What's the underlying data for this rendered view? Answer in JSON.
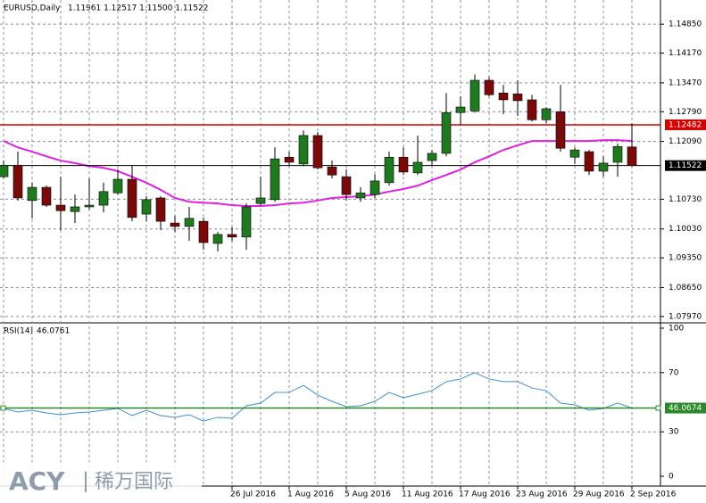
{
  "chart_data": [
    {
      "type": "candlestick",
      "title": "EURUSD,Daily",
      "ohlc_label": "1.11961 1.12517 1.11500 1.11522",
      "categories": [
        null,
        null,
        null,
        null,
        null,
        null,
        null,
        null,
        null,
        null,
        null,
        null,
        null,
        null,
        null,
        null,
        "26 Jul 2016",
        null,
        null,
        null,
        "1 Aug 2016",
        null,
        null,
        null,
        "5 Aug 2016",
        null,
        null,
        null,
        "11 Aug 2016",
        null,
        null,
        null,
        "17 Aug 2016",
        null,
        null,
        null,
        "23 Aug 2016",
        null,
        null,
        null,
        "29 Aug 2016",
        null,
        null,
        null,
        "2 Sep 2016"
      ],
      "open": [
        1.1126,
        1.1153,
        1.107,
        1.1101,
        1.1059,
        1.1044,
        1.1055,
        1.1059,
        1.1088,
        1.112,
        1.1038,
        1.1076,
        1.1017,
        1.1009,
        1.1021,
        1.0969,
        1.099,
        1.0984,
        1.1063,
        1.1072,
        1.1172,
        1.1156,
        1.1223,
        1.1149,
        1.1126,
        1.1076,
        1.1084,
        1.1112,
        1.1172,
        1.1135,
        1.1164,
        1.1181,
        1.1277,
        1.1281,
        1.1353,
        1.1323,
        1.1321,
        1.1307,
        1.126,
        1.1279,
        1.1172,
        1.1185,
        1.1139,
        1.116,
        1.11961
      ],
      "high": [
        1.1164,
        1.1185,
        1.1112,
        1.1105,
        1.1126,
        1.1084,
        1.1122,
        1.1112,
        1.1143,
        1.1153,
        1.108,
        1.108,
        1.1034,
        1.1055,
        1.103,
        1.0996,
        1.1007,
        1.1063,
        1.1126,
        1.1195,
        1.1185,
        1.1235,
        1.1231,
        1.1164,
        1.1143,
        1.1101,
        1.1132,
        1.1185,
        1.1195,
        1.1223,
        1.1189,
        1.1323,
        1.1315,
        1.1367,
        1.1361,
        1.1342,
        1.1353,
        1.1319,
        1.129,
        1.1342,
        1.1195,
        1.1189,
        1.1174,
        1.1204,
        1.12517
      ],
      "low": [
        1.1122,
        1.107,
        1.1028,
        1.1055,
        1.1,
        1.1017,
        1.1049,
        1.1042,
        1.1084,
        1.1021,
        1.1021,
        1.1,
        1.0996,
        1.0975,
        1.0954,
        1.095,
        1.0975,
        1.0954,
        1.1059,
        1.1067,
        1.1151,
        1.1151,
        1.1143,
        1.1122,
        1.107,
        1.1067,
        1.1076,
        1.1105,
        1.113,
        1.113,
        1.1153,
        1.1174,
        1.1248,
        1.1277,
        1.1315,
        1.1273,
        1.1269,
        1.1256,
        1.1252,
        1.1185,
        1.1156,
        1.113,
        1.1126,
        1.1126,
        1.115
      ],
      "close": [
        1.1153,
        1.1076,
        1.1101,
        1.1059,
        1.1046,
        1.1055,
        1.1059,
        1.1091,
        1.112,
        1.103,
        1.1072,
        1.1021,
        1.1009,
        1.1028,
        1.0971,
        1.099,
        1.0984,
        1.1055,
        1.1076,
        1.1168,
        1.116,
        1.1223,
        1.1147,
        1.113,
        1.1084,
        1.1088,
        1.1116,
        1.1172,
        1.1137,
        1.116,
        1.1181,
        1.1277,
        1.129,
        1.1353,
        1.1319,
        1.1307,
        1.1305,
        1.126,
        1.1286,
        1.1193,
        1.1189,
        1.1139,
        1.1158,
        1.1197,
        1.11522
      ],
      "up_color": "#1f7a1f",
      "down_color": "#7a0a0a",
      "ma": {
        "color": "#e020e0",
        "values": [
          1.121,
          1.1195,
          1.1185,
          1.1174,
          1.1164,
          1.1158,
          1.1151,
          1.1147,
          1.1139,
          1.1126,
          1.1112,
          1.1095,
          1.1076,
          1.1067,
          1.1065,
          1.1063,
          1.1059,
          1.1057,
          1.1057,
          1.1059,
          1.1063,
          1.1065,
          1.107,
          1.1076,
          1.1078,
          1.108,
          1.1084,
          1.1091,
          1.1097,
          1.1105,
          1.1118,
          1.113,
          1.1143,
          1.116,
          1.1174,
          1.1189,
          1.12,
          1.121,
          1.121,
          1.121,
          1.121,
          1.121,
          1.1212,
          1.1212,
          1.121
        ]
      },
      "hlines": [
        {
          "value": 1.12482,
          "color": "#d40000"
        },
        {
          "value": 1.11522,
          "color": "#000000"
        }
      ],
      "ylim": [
        1.0782,
        1.1542
      ],
      "yticks": [
        {
          "value": 1.1485,
          "label": "1.14850"
        },
        {
          "value": 1.1417,
          "label": "1.14170"
        },
        {
          "value": 1.1347,
          "label": "1.13470"
        },
        {
          "value": 1.1279,
          "label": "1.12790"
        },
        {
          "value": 1.1209,
          "label": "1.12090"
        },
        {
          "value": 1.1073,
          "label": "1.10730"
        },
        {
          "value": 1.1003,
          "label": "1.10030"
        },
        {
          "value": 1.0935,
          "label": "1.09350"
        },
        {
          "value": 1.0865,
          "label": "1.08650"
        },
        {
          "value": 1.0797,
          "label": "1.07970"
        }
      ],
      "grid": true
    },
    {
      "type": "line",
      "title": "RSI(14)",
      "color": "#3d8fd6",
      "values": [
        45.8,
        43.4,
        44.6,
        42.8,
        41.6,
        42.8,
        43.4,
        44.6,
        45.8,
        41.0,
        44.6,
        41.0,
        39.8,
        41.6,
        37.3,
        39.8,
        39.2,
        47.6,
        49.4,
        56.6,
        56.6,
        61.4,
        54.8,
        50.6,
        47.0,
        47.6,
        50.6,
        56.6,
        53.0,
        55.4,
        57.8,
        63.9,
        65.7,
        69.9,
        65.7,
        63.9,
        63.9,
        59.6,
        57.8,
        49.4,
        48.2,
        44.6,
        45.8,
        49.4,
        46.0761
      ],
      "level": {
        "value": 46.0674,
        "color": "#2a8a2a"
      },
      "ylim": [
        -6.6,
        103.6
      ],
      "yticks": [
        100,
        70,
        30,
        0
      ],
      "grid": true
    }
  ],
  "watermark": {
    "brand": "ACY",
    "name": "稀万国际"
  }
}
